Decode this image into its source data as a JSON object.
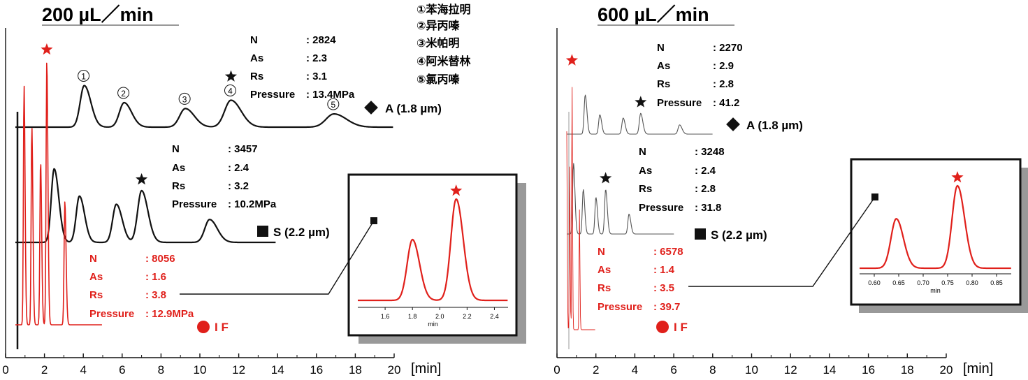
{
  "chart_data": [
    {
      "type": "line",
      "title": "200 µL／min",
      "xlabel": "[min]",
      "xlim": [
        0,
        20
      ],
      "xticks": [
        "0",
        "2",
        "4",
        "6",
        "8",
        "10",
        "12",
        "14",
        "16",
        "18",
        "20"
      ],
      "grid": false,
      "compounds": [
        "①苯海拉明",
        "②异丙嗪",
        "③米帕明",
        "④阿米替林",
        "⑤氯丙嗪"
      ],
      "series": [
        {
          "name": "A (1.8 µm)",
          "marker": "diamond",
          "color": "#111111",
          "peaks": [
            {
              "label": "①",
              "rt": 4.05,
              "height": 0.85
            },
            {
              "label": "②",
              "rt": 6.1,
              "height": 0.5
            },
            {
              "label": "③",
              "rt": 9.25,
              "height": 0.38
            },
            {
              "label": "④",
              "rt": 11.6,
              "height": 0.55,
              "star": true
            },
            {
              "label": "⑤",
              "rt": 16.9,
              "height": 0.27
            }
          ],
          "stats": {
            "N": ": 2824",
            "As": ": 2.3",
            "Rs": ": 3.1",
            "Pressure": ": 13.4MPa"
          }
        },
        {
          "name": "S (2.2 µm)",
          "marker": "square",
          "color": "#111111",
          "peaks": [
            {
              "rt": 2.5,
              "height": 1.35
            },
            {
              "rt": 3.8,
              "height": 0.85
            },
            {
              "rt": 5.7,
              "height": 0.7
            },
            {
              "rt": 7.0,
              "height": 0.95,
              "star": true
            },
            {
              "rt": 10.5,
              "height": 0.42
            }
          ],
          "stats": {
            "N": ": 3457",
            "As": ": 2.4",
            "Rs": ": 3.2",
            "Pressure": ": 10.2MPa"
          }
        },
        {
          "name": "I F",
          "marker": "circle",
          "color": "#e0201b",
          "peaks": [
            {
              "rt": 0.95,
              "height": 4.1
            },
            {
              "rt": 1.35,
              "height": 3.4
            },
            {
              "rt": 1.8,
              "height": 2.8
            },
            {
              "rt": 2.12,
              "height": 4.5,
              "star": true
            },
            {
              "rt": 3.05,
              "height": 2.1
            }
          ],
          "stats": {
            "N": ": 8056",
            "As": ": 1.6",
            "Rs": ": 3.8",
            "Pressure": ": 12.9MPa"
          }
        }
      ],
      "inset": {
        "xlabel": "min",
        "xlim": [
          1.4,
          2.5
        ],
        "xticks": [
          "1.6",
          "1.8",
          "2.0",
          "2.2",
          "2.4"
        ],
        "peaks": [
          {
            "rt": 1.8,
            "height": 0.6
          },
          {
            "rt": 2.12,
            "height": 1.0,
            "star": true
          }
        ]
      }
    },
    {
      "type": "line",
      "title": "600 µL／min",
      "xlabel": "[min]",
      "xlim": [
        0,
        20
      ],
      "xticks": [
        "0",
        "2",
        "4",
        "6",
        "8",
        "10",
        "12",
        "14",
        "16",
        "18",
        "20"
      ],
      "grid": false,
      "series": [
        {
          "name": "A (1.8 µm)",
          "marker": "diamond",
          "color": "#555555",
          "peaks": [
            {
              "rt": 1.45,
              "height": 0.85
            },
            {
              "rt": 2.2,
              "height": 0.42
            },
            {
              "rt": 3.4,
              "height": 0.35
            },
            {
              "rt": 4.3,
              "height": 0.45,
              "star": true
            },
            {
              "rt": 6.3,
              "height": 0.2
            }
          ],
          "stats": {
            "N": ": 2270",
            "As": ": 2.9",
            "Rs": ": 2.8",
            "Pressure": ": 41.2"
          }
        },
        {
          "name": "S (2.2 µm)",
          "marker": "square",
          "color": "#555555",
          "peaks": [
            {
              "rt": 0.85,
              "height": 1.35
            },
            {
              "rt": 1.35,
              "height": 0.85
            },
            {
              "rt": 2.0,
              "height": 0.7
            },
            {
              "rt": 2.5,
              "height": 0.85,
              "star": true
            },
            {
              "rt": 3.7,
              "height": 0.38
            }
          ],
          "stats": {
            "N": ": 3248",
            "As": ": 2.4",
            "Rs": ": 2.8",
            "Pressure": ": 31.8"
          }
        },
        {
          "name": "I F",
          "marker": "circle",
          "color": "#e0201b",
          "peaks": [
            {
              "rt": 0.35,
              "height": 4.0
            },
            {
              "rt": 0.5,
              "height": 3.4
            },
            {
              "rt": 0.65,
              "height": 2.8
            },
            {
              "rt": 0.77,
              "height": 4.4,
              "star": true
            },
            {
              "rt": 1.15,
              "height": 2.1
            }
          ],
          "stats": {
            "N": ": 6578",
            "As": ": 1.4",
            "Rs": ": 3.5",
            "Pressure": ": 39.7"
          }
        }
      ],
      "inset": {
        "xlabel": "min",
        "xlim": [
          0.57,
          0.88
        ],
        "xticks": [
          "0.60",
          "0.65",
          "0.70",
          "0.75",
          "0.80",
          "0.85"
        ],
        "peaks": [
          {
            "rt": 0.645,
            "height": 0.6
          },
          {
            "rt": 0.77,
            "height": 1.0,
            "star": true
          }
        ]
      }
    }
  ],
  "style": {
    "red": "#e0201b",
    "black": "#111111",
    "shadow": "#999999"
  }
}
